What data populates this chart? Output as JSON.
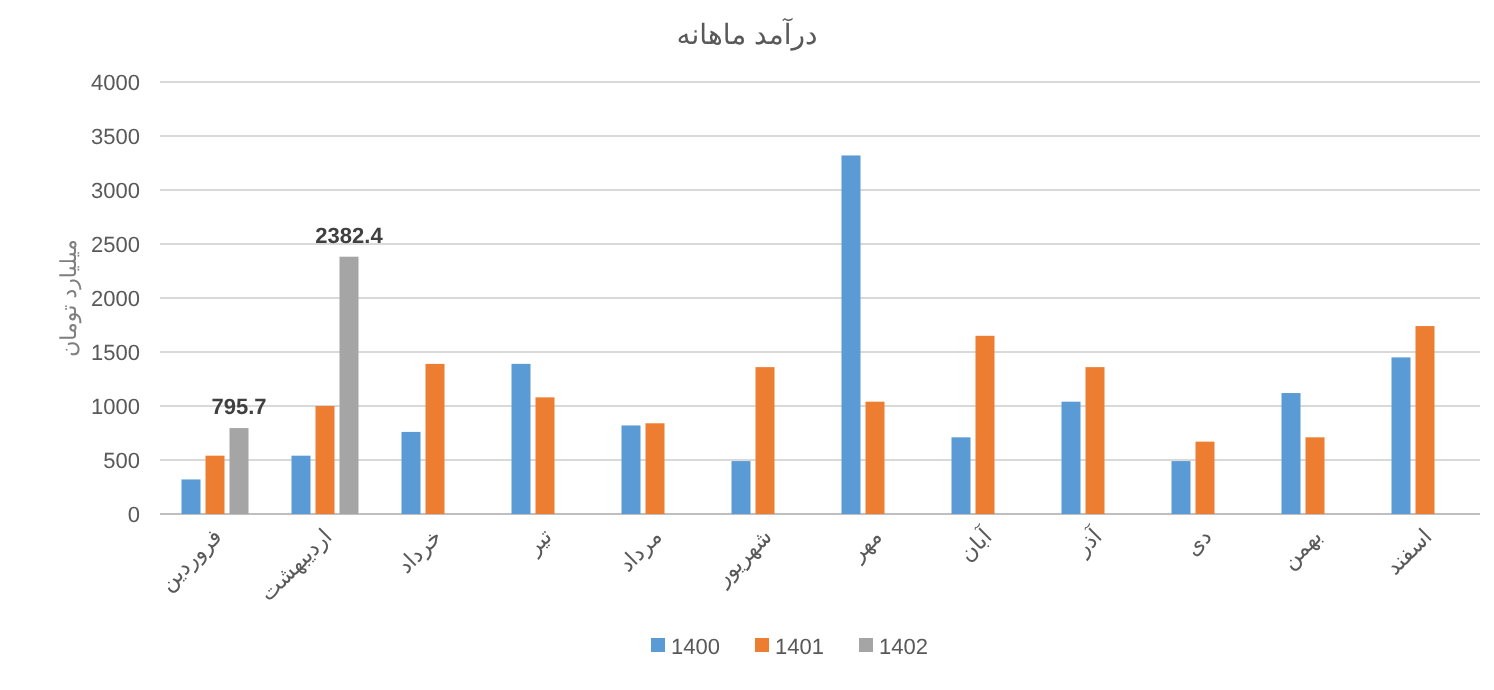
{
  "chart_data": {
    "type": "bar",
    "title": "درآمد ماهانه",
    "ylabel": "میلیارد تومان",
    "categories": [
      "فروردین",
      "اردیبهشت",
      "خرداد",
      "تیر",
      "مرداد",
      "شهریور",
      "مهر",
      "آبان",
      "آذر",
      "دی",
      "بهمن",
      "اسفند"
    ],
    "series": [
      {
        "name": "1400",
        "color": "#5b9bd5",
        "values": [
          320,
          540,
          760,
          1390,
          820,
          490,
          3320,
          710,
          1040,
          490,
          1120,
          1450
        ]
      },
      {
        "name": "1401",
        "color": "#ed7d31",
        "values": [
          540,
          1000,
          1390,
          1080,
          840,
          1360,
          1040,
          1650,
          1360,
          670,
          710,
          1740
        ]
      },
      {
        "name": "1402",
        "color": "#a5a5a5",
        "values": [
          795.7,
          2382.4,
          null,
          null,
          null,
          null,
          null,
          null,
          null,
          null,
          null,
          null
        ],
        "value_labels": [
          "795.7",
          "2382.4",
          null,
          null,
          null,
          null,
          null,
          null,
          null,
          null,
          null,
          null
        ]
      }
    ],
    "ylim": [
      0,
      4000
    ],
    "yticks": [
      0,
      500,
      1000,
      1500,
      2000,
      2500,
      3000,
      3500,
      4000
    ],
    "grid": "y",
    "legend": "bottom"
  }
}
